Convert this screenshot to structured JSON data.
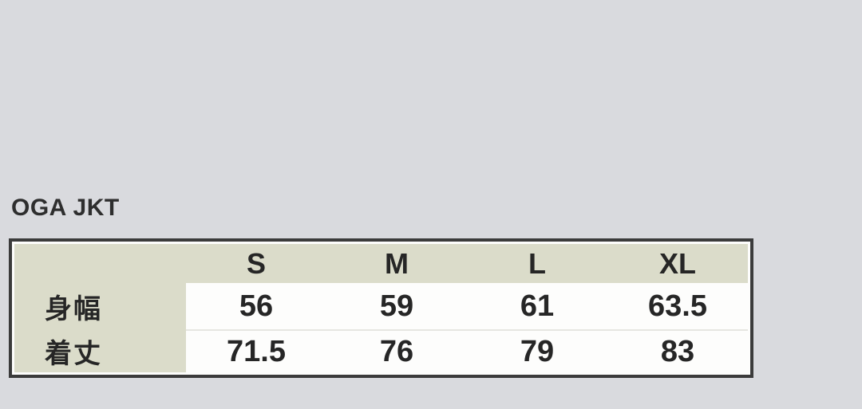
{
  "page": {
    "background_color": "#d9dade"
  },
  "title": {
    "text": "OGA JKT"
  },
  "size_chart": {
    "corner_label": "",
    "columns": [
      "S",
      "M",
      "L",
      "XL"
    ],
    "rows": [
      {
        "label": "身幅",
        "values": [
          "56",
          "59",
          "61",
          "63.5"
        ]
      },
      {
        "label": "着丈",
        "values": [
          "71.5",
          "76",
          "79",
          "83"
        ]
      }
    ]
  },
  "chart_data": {
    "type": "table",
    "title": "OGA JKT",
    "columns": [
      "",
      "S",
      "M",
      "L",
      "XL"
    ],
    "rows": [
      [
        "身幅",
        56,
        59,
        61,
        63.5
      ],
      [
        "着丈",
        71.5,
        76,
        79,
        83
      ]
    ]
  },
  "colors": {
    "page_background": "#d9dade",
    "header_background": "#dbdcca",
    "cell_background": "#fdfdfc",
    "table_border": "#3b3b3b",
    "row_separator": "#e6e6e1",
    "text": "#262626"
  }
}
